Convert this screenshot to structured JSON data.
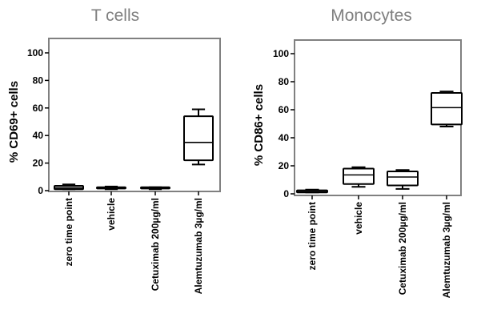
{
  "chart_data": [
    {
      "type": "box",
      "title": "T cells",
      "ylabel": "% CD69+ cells",
      "xlabel": "",
      "ylim": [
        0,
        100
      ],
      "yticks": [
        0,
        20,
        40,
        60,
        80,
        100
      ],
      "grid": false,
      "categories": [
        "zero time point",
        "vehicle",
        "Cetuximab 200µg/ml",
        "Alemtuzumab 3µg/ml"
      ],
      "boxes": [
        {
          "min": 1,
          "q1": 1,
          "median": 2,
          "q3": 3.5,
          "max": 4.5
        },
        {
          "min": 1,
          "q1": 1.5,
          "median": 2,
          "q3": 2.5,
          "max": 3
        },
        {
          "min": 1,
          "q1": 1.5,
          "median": 2,
          "q3": 2.5,
          "max": 2.5
        },
        {
          "min": 19,
          "q1": 22,
          "median": 35,
          "q3": 54,
          "max": 59
        }
      ]
    },
    {
      "type": "box",
      "title": "Monocytes",
      "ylabel": "% CD86+ cells",
      "xlabel": "",
      "ylim": [
        0,
        100
      ],
      "yticks": [
        0,
        20,
        40,
        60,
        80,
        100
      ],
      "grid": false,
      "categories": [
        "zero time point",
        "vehicle",
        "Cetuximab 200µg/ml",
        "Alemtuzumab 3µg/ml"
      ],
      "boxes": [
        {
          "min": 1,
          "q1": 1,
          "median": 1.5,
          "q3": 2.5,
          "max": 3
        },
        {
          "min": 5,
          "q1": 7,
          "median": 13.5,
          "q3": 18,
          "max": 19
        },
        {
          "min": 3.5,
          "q1": 6,
          "median": 12,
          "q3": 16,
          "max": 17
        },
        {
          "min": 48,
          "q1": 49.5,
          "median": 61.5,
          "q3": 72,
          "max": 73
        }
      ]
    }
  ],
  "colors": {
    "title": "#7f7f7f",
    "frame": "#808080",
    "marks": "#000000"
  }
}
